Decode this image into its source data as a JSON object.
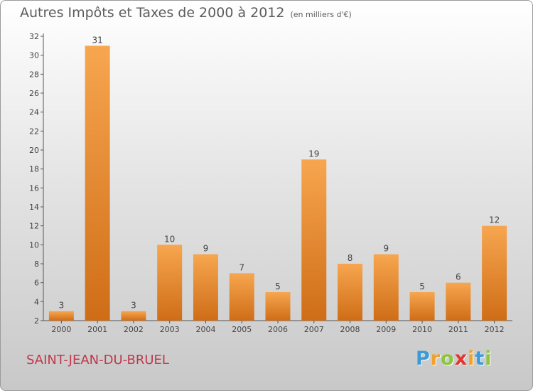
{
  "header": {
    "title": "Autres Impôts et Taxes de 2000 à 2012",
    "subtitle": "(en milliers d'€)"
  },
  "footer": {
    "commune": "SAINT-JEAN-DU-BRUEL",
    "logo": {
      "letters": [
        "P",
        "r",
        "o",
        "x",
        "i",
        "t",
        "i"
      ],
      "colors": [
        "#3a9bd9",
        "#f0a22a",
        "#8cc63f",
        "#e8322c",
        "#f0a22a",
        "#3a9bd9",
        "#8cc63f"
      ]
    }
  },
  "chart_data": {
    "type": "bar",
    "title": "Autres Impôts et Taxes de 2000 à 2012",
    "subtitle": "(en milliers d'€)",
    "categories": [
      "2000",
      "2001",
      "2002",
      "2003",
      "2004",
      "2005",
      "2006",
      "2007",
      "2008",
      "2009",
      "2010",
      "2011",
      "2012"
    ],
    "values": [
      3,
      31,
      3,
      10,
      9,
      7,
      5,
      19,
      8,
      9,
      5,
      6,
      12
    ],
    "ylim": [
      2,
      32
    ],
    "yticks": [
      2,
      4,
      6,
      8,
      10,
      12,
      14,
      16,
      18,
      20,
      22,
      24,
      26,
      28,
      30,
      32
    ],
    "grid": false,
    "legend": "none",
    "colors": {
      "bar_light": "#f7a64f",
      "bar_dark": "#cf6d17",
      "axis": "#555555",
      "text": "#444444"
    }
  }
}
